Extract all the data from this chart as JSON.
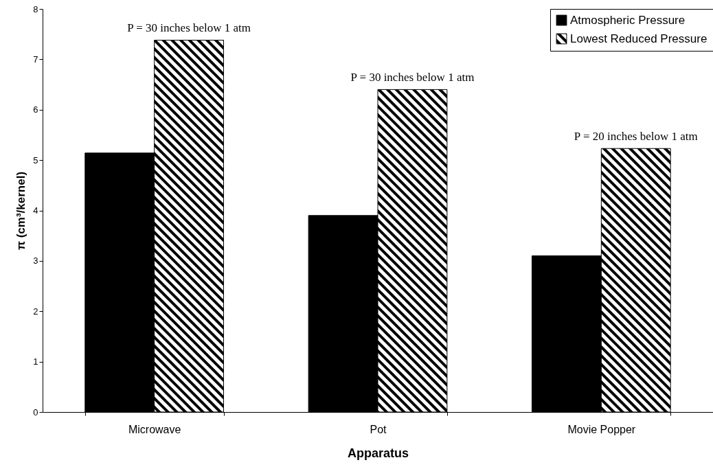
{
  "chart_data": {
    "type": "bar",
    "xlabel": "Apparatus",
    "ylabel": "π (cm³/kernel)",
    "categories": [
      "Microwave",
      "Pot",
      "Movie Popper"
    ],
    "series": [
      {
        "name": "Atmospheric Pressure",
        "color": "#000000",
        "values": [
          5.14,
          3.9,
          3.1
        ]
      },
      {
        "name": "Lowest Reduced Pressure",
        "color": "#000000",
        "values": [
          7.38,
          6.4,
          5.23
        ]
      }
    ],
    "ylim": [
      0,
      8
    ],
    "yticks": [
      0,
      1,
      2,
      3,
      4,
      5,
      6,
      7,
      8
    ],
    "grid": false,
    "legend": "top right",
    "annotations": [
      {
        "text": "P = 30 inches below 1 atm",
        "x": "Microwave",
        "y": 7.38
      },
      {
        "text": "P = 30 inches below 1 atm",
        "x": "Pot",
        "y": 6.4
      },
      {
        "text": "P = 20 inches below 1 atm",
        "x": "Movie Popper",
        "y": 5.23
      }
    ]
  }
}
